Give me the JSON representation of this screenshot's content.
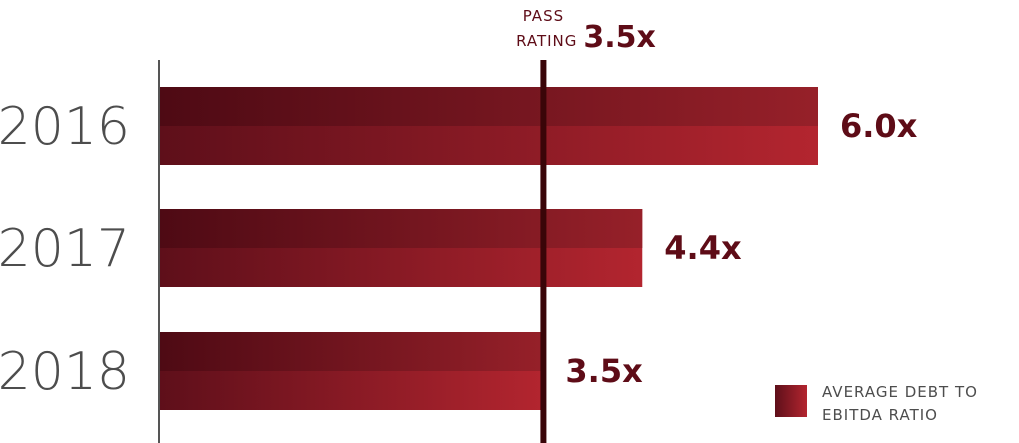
{
  "chart_data": {
    "type": "bar",
    "orientation": "horizontal",
    "categories": [
      "2016",
      "2017",
      "2018"
    ],
    "values": [
      6.0,
      4.4,
      3.5
    ],
    "value_labels": [
      "6.0x",
      "4.4x",
      "3.5x"
    ],
    "xlim": [
      0,
      6.0
    ],
    "reference_line": {
      "value": 3.5,
      "label_line1": "PASS",
      "label_line2": "RATING",
      "value_label": "3.5x"
    },
    "legend": {
      "label_line1": "AVERAGE DEBT TO",
      "label_line2": "EBITDA RATIO",
      "placement": "bottom-right"
    },
    "grid": false,
    "title": "",
    "xlabel": "",
    "ylabel": ""
  },
  "colors": {
    "bar_dark": "#5e0f1a",
    "bar_light": "#b3252f",
    "reference_line": "#3a0508",
    "label": "#5e0c17",
    "axis": "#555555"
  }
}
